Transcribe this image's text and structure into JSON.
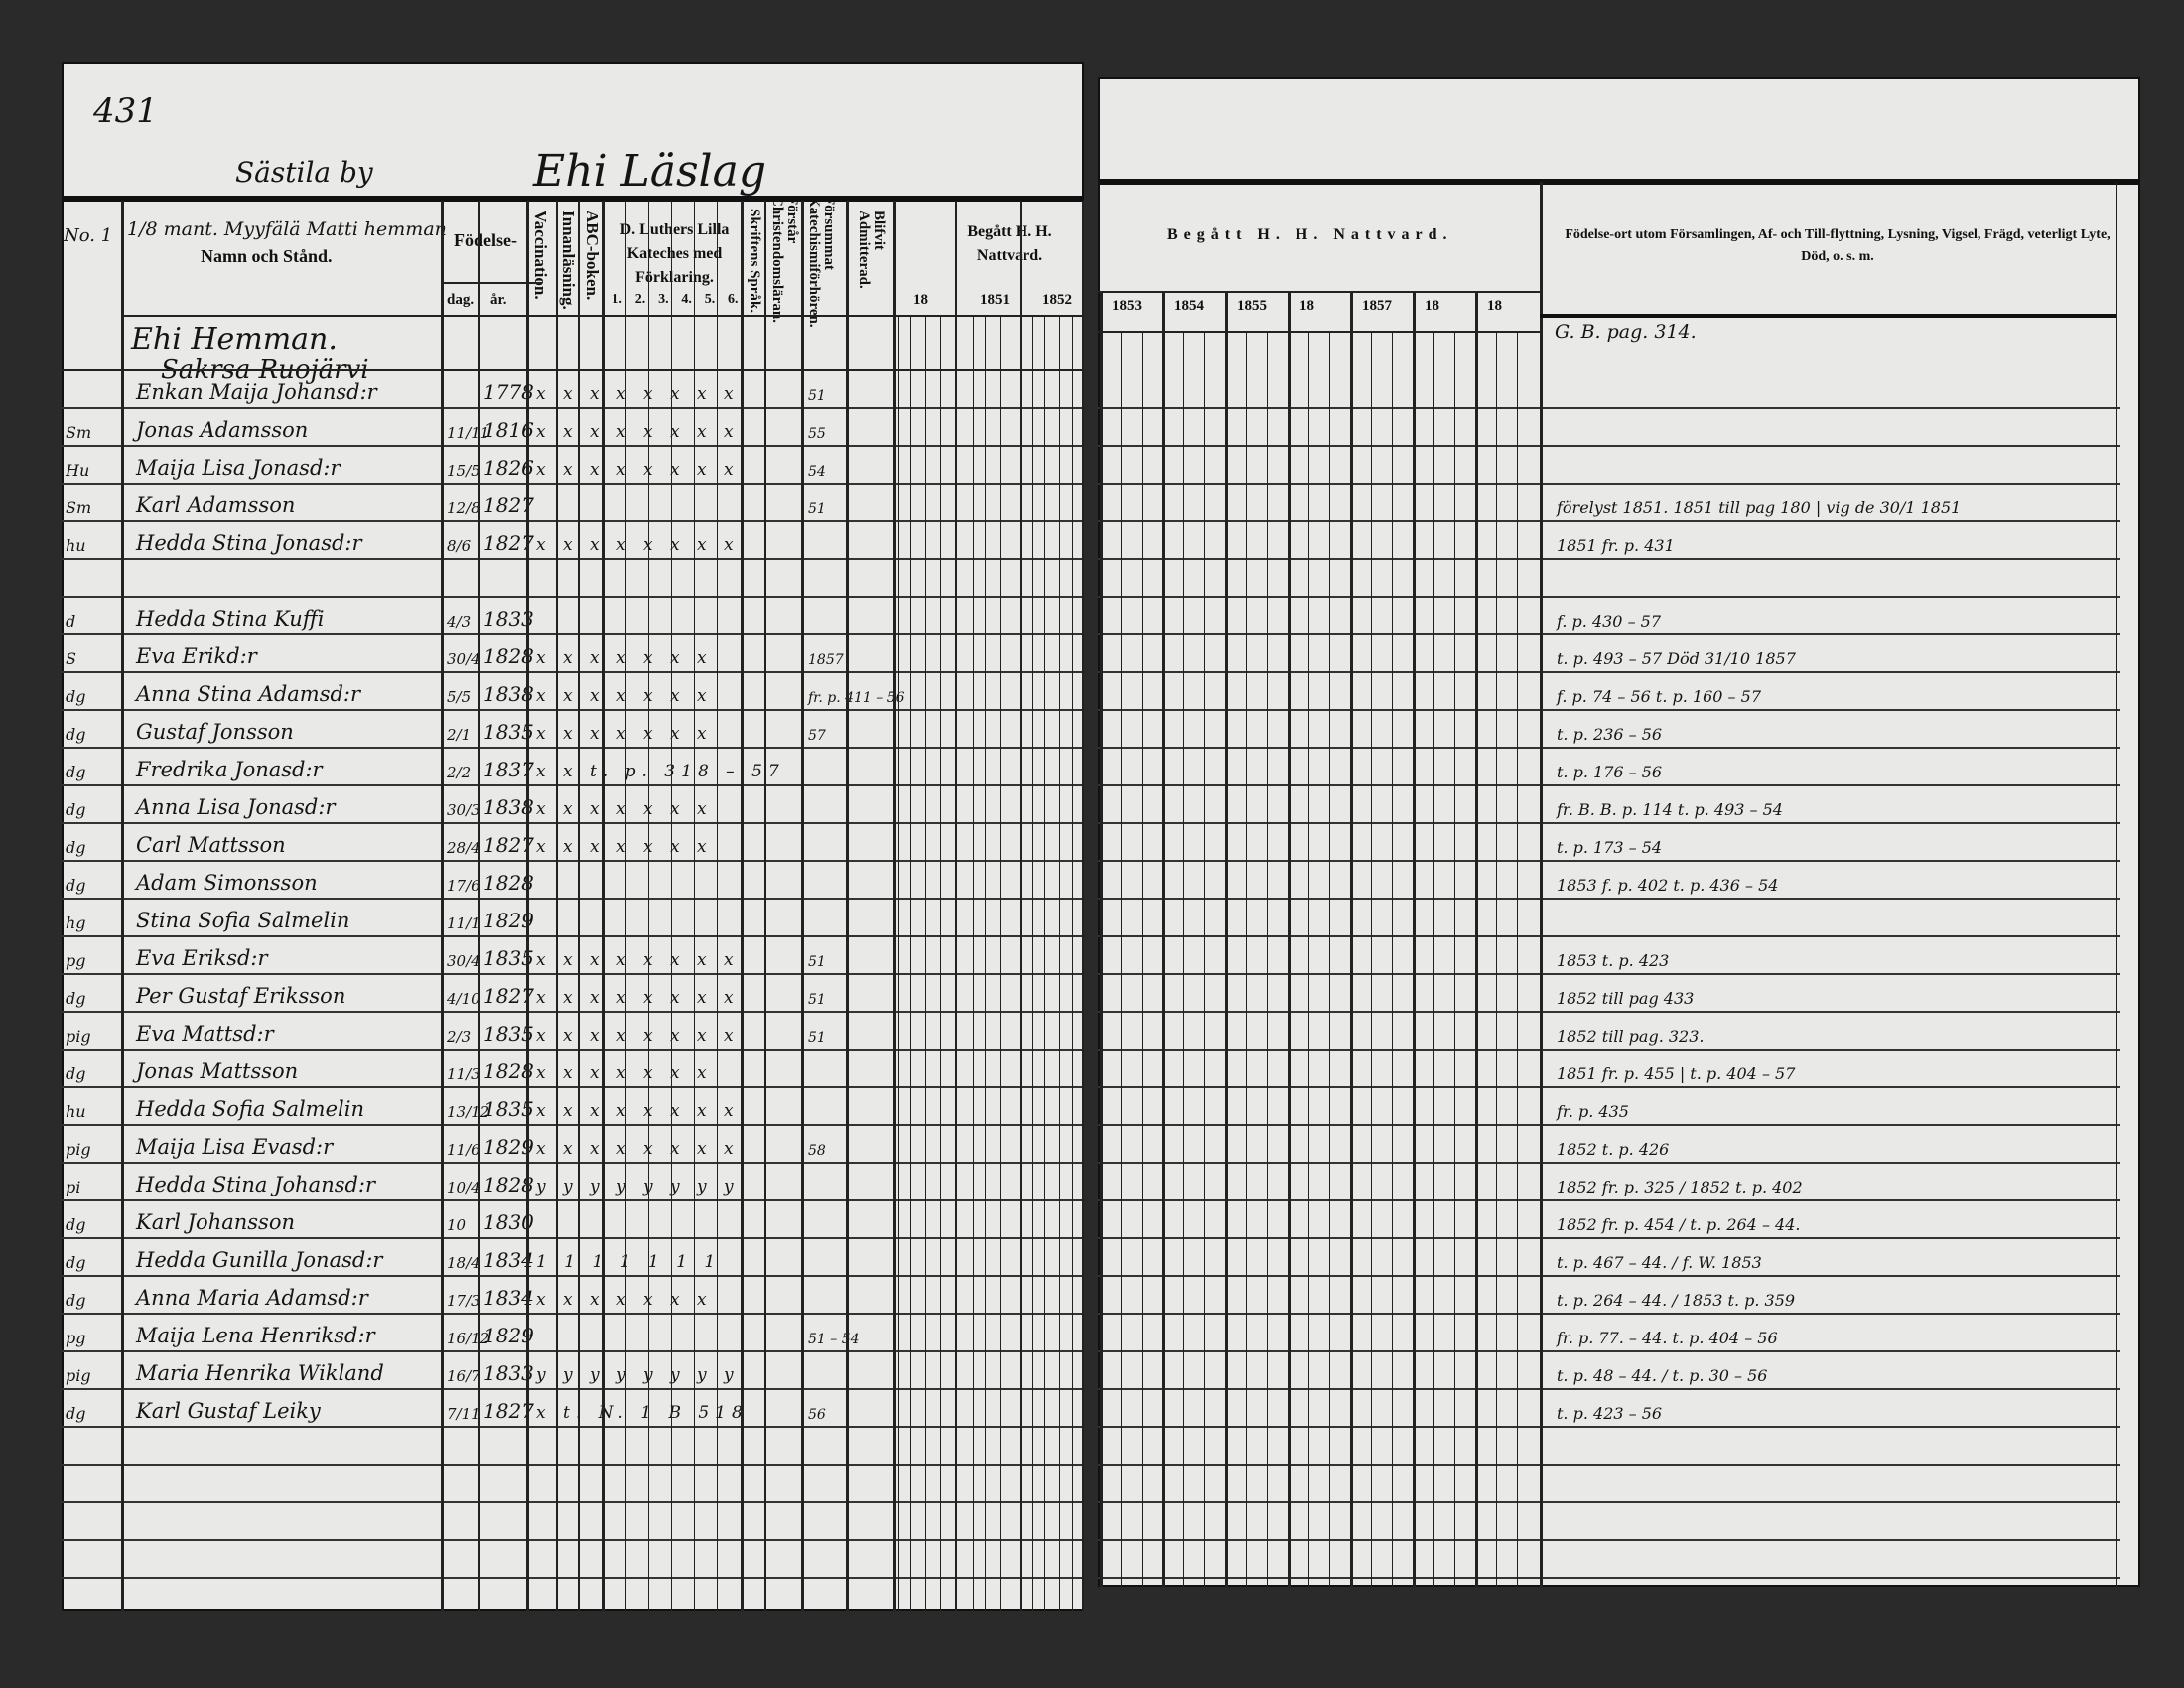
{
  "left_page": {
    "page_number": "431",
    "village": "Sästila by",
    "farm_title": "Ehi Läslag",
    "header": {
      "no_label": "No. 1",
      "name_col_note": "1/8 mant. Myyfälä Matti hemman",
      "name_col": "Namn och Stånd.",
      "birth": "Födelse-",
      "birth_day": "dag.",
      "birth_year": "år.",
      "vaccination": "Vaccination.",
      "innanlasning": "Innanläsning.",
      "abc": "ABC-boken.",
      "luther": "D. Luthers Lilla Kateches med Förklaring.",
      "luther_parts": [
        "1.",
        "2.",
        "3.",
        "4.",
        "5.",
        "6."
      ],
      "skrift": "Skriftens Språk.",
      "forstar": "Förstår Christendomsläran.",
      "forsummat": "Försummat Katechismiförhören.",
      "admitterad": "Blifvit Admitterad.",
      "begatt": "Begått H. H. Nattvard.",
      "years": [
        "18",
        "1851",
        "1852"
      ]
    },
    "section_title": "Ehi Hemman.",
    "section_subtitle": "Sakrsa Ruojärvi"
  },
  "right_page": {
    "header": {
      "begatt": "Begått H. H. Nattvard.",
      "years": [
        "1853",
        "1854",
        "1855",
        "18",
        "1857",
        "18",
        "18"
      ],
      "remarks": "Födelse-ort utom Församlingen, Af- och Till-flyttning, Lysning, Vigsel, Frägd, veterligt Lyte, Död, o. s. m."
    },
    "first_remark": "G. B. pag. 314."
  },
  "rows": [
    {
      "prefix": "",
      "name": "Enkan Maija Johansd:r",
      "day": "",
      "year": "1778",
      "marks": "x x x x x x x x",
      "kat": "51",
      "remark": ""
    },
    {
      "prefix": "Sm",
      "name": "Jonas Adamsson",
      "day": "11/11",
      "year": "1816",
      "marks": "x x x x x x x x",
      "kat": "55",
      "remark": ""
    },
    {
      "prefix": "Hu",
      "name": "Maija Lisa Jonasd:r",
      "day": "15/5",
      "year": "1826",
      "marks": "x x x x x x x x",
      "kat": "54",
      "remark": ""
    },
    {
      "prefix": "Sm",
      "name": "Karl Adamsson",
      "day": "12/8",
      "year": "1827",
      "marks": "",
      "kat": "51",
      "remark": "förelyst 1851. 1851 till pag 180 | vig de 30/1 1851"
    },
    {
      "prefix": "hu",
      "name": "Hedda Stina Jonasd:r",
      "day": "8/6",
      "year": "1827",
      "marks": "x x x x x x x x",
      "kat": "",
      "remark": "1851 fr. p. 431"
    },
    {
      "prefix": "",
      "name": "",
      "day": "",
      "year": "",
      "marks": "",
      "kat": "",
      "remark": ""
    },
    {
      "prefix": "d",
      "name": "Hedda Stina Kuffi",
      "day": "4/3",
      "year": "1833",
      "marks": "",
      "kat": "",
      "remark": "f. p. 430 – 57"
    },
    {
      "prefix": "S",
      "name": "Eva Erikd:r",
      "day": "30/4",
      "year": "1828",
      "marks": "x x x x x x x",
      "kat": "1857",
      "remark": "t. p. 493 – 57 Död 31/10 1857"
    },
    {
      "prefix": "dg",
      "name": "Anna Stina Adamsd:r",
      "day": "5/5",
      "year": "1838",
      "marks": "x x x x x x x",
      "kat": "fr. p. 411 – 56",
      "remark": "f. p. 74 – 56 t. p. 160 – 57"
    },
    {
      "prefix": "dg",
      "name": "Gustaf Jonsson",
      "day": "2/1",
      "year": "1835",
      "marks": "x x x x x x x",
      "kat": "57",
      "remark": "t. p. 236 – 56"
    },
    {
      "prefix": "dg",
      "name": "Fredrika Jonasd:r",
      "day": "2/2",
      "year": "1837",
      "marks": "x x t. p. 318 – 57",
      "kat": "",
      "remark": "t. p. 176 – 56"
    },
    {
      "prefix": "dg",
      "name": "Anna Lisa Jonasd:r",
      "day": "30/3",
      "year": "1838",
      "marks": "x x x x x x x",
      "kat": "",
      "remark": "fr. B. B. p. 114 t. p. 493 – 54"
    },
    {
      "prefix": "dg",
      "name": "Carl Mattsson",
      "day": "28/4",
      "year": "1827",
      "marks": "x x x x x x x",
      "kat": "",
      "remark": "t. p. 173 – 54"
    },
    {
      "prefix": "dg",
      "name": "Adam Simonsson",
      "day": "17/6",
      "year": "1828",
      "marks": "",
      "kat": "",
      "remark": "1853 f. p. 402 t. p. 436 – 54"
    },
    {
      "prefix": "hg",
      "name": "Stina Sofia Salmelin",
      "day": "11/1",
      "year": "1829",
      "marks": "",
      "kat": "",
      "remark": ""
    },
    {
      "prefix": "pg",
      "name": "Eva Eriksd:r",
      "day": "30/4",
      "year": "1835",
      "marks": "x x x x x x x x",
      "kat": "51",
      "remark": "1853 t. p. 423"
    },
    {
      "prefix": "dg",
      "name": "Per Gustaf Eriksson",
      "day": "4/10",
      "year": "1827",
      "marks": "x x x x x x x x",
      "kat": "51",
      "remark": "1852 till pag 433"
    },
    {
      "prefix": "pig",
      "name": "Eva Mattsd:r",
      "day": "2/3",
      "year": "1835",
      "marks": "x x x x x x x x",
      "kat": "51",
      "remark": "1852 till pag. 323."
    },
    {
      "prefix": "dg",
      "name": "Jonas Mattsson",
      "day": "11/3",
      "year": "1828",
      "marks": "x x x x x x x",
      "kat": "",
      "remark": "1851 fr. p. 455 | t. p. 404 – 57"
    },
    {
      "prefix": "hu",
      "name": "Hedda Sofia Salmelin",
      "day": "13/12",
      "year": "1835",
      "marks": "x x x x x x x x",
      "kat": "",
      "remark": "fr. p. 435"
    },
    {
      "prefix": "pig",
      "name": "Maija Lisa Evasd:r",
      "day": "11/6",
      "year": "1829",
      "marks": "x x x x x x x x",
      "kat": "58",
      "remark": "1852 t. p. 426"
    },
    {
      "prefix": "pi",
      "name": "Hedda Stina Johansd:r",
      "day": "10/4",
      "year": "1828",
      "marks": "y y y y y y y y",
      "kat": "",
      "remark": "1852 fr. p. 325 / 1852 t. p. 402"
    },
    {
      "prefix": "dg",
      "name": "Karl Johansson",
      "day": "10",
      "year": "1830",
      "marks": "",
      "kat": "",
      "remark": "1852 fr. p. 454 / t. p. 264 – 44."
    },
    {
      "prefix": "dg",
      "name": "Hedda Gunilla Jonasd:r",
      "day": "18/4",
      "year": "1834",
      "marks": "1 1 1 1 1 1 1",
      "kat": "",
      "remark": "t. p. 467 – 44. / f. W. 1853"
    },
    {
      "prefix": "dg",
      "name": "Anna Maria Adamsd:r",
      "day": "17/3",
      "year": "1834",
      "marks": "x x x x x x x",
      "kat": "",
      "remark": "t. p. 264 – 44. / 1853 t. p. 359"
    },
    {
      "prefix": "pg",
      "name": "Maija Lena Henriksd:r",
      "day": "16/12",
      "year": "1829",
      "marks": "",
      "kat": "51 – 54",
      "remark": "fr. p. 77. – 44. t. p. 404 – 56"
    },
    {
      "prefix": "pig",
      "name": "Maria Henrika Wikland",
      "day": "16/7",
      "year": "1833",
      "marks": "y y y y y y y y",
      "kat": "",
      "remark": "t. p. 48 – 44. / t. p. 30 – 56"
    },
    {
      "prefix": "dg",
      "name": "Karl Gustaf Leiky",
      "day": "7/11",
      "year": "1827",
      "marks": "x  t. N. 1 B 518",
      "kat": "56",
      "remark": "t. p. 423 – 56"
    }
  ]
}
